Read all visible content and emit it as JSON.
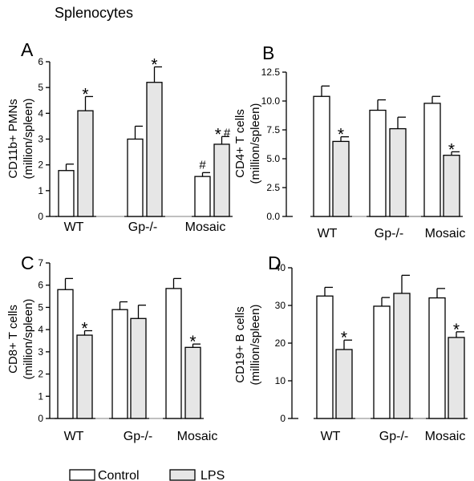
{
  "figure_title": "Splenocytes",
  "legend": [
    {
      "label": "Control",
      "color": "#ffffff"
    },
    {
      "label": "LPS",
      "color": "#e6e6e6"
    }
  ],
  "chart_data": [
    {
      "panel": "A",
      "type": "bar",
      "ylabel_lines": [
        "CD11b+ PMNs",
        "(million/spleen)"
      ],
      "categories": [
        "WT",
        "Gp-/-",
        "Mosaic"
      ],
      "ylim": [
        0,
        6
      ],
      "yticks": [
        "0",
        "1",
        "2",
        "3",
        "4",
        "5",
        "6"
      ],
      "series": [
        {
          "name": "Control",
          "values": [
            1.78,
            3.0,
            1.55
          ],
          "errors": [
            0.25,
            0.5,
            0.15
          ]
        },
        {
          "name": "LPS",
          "values": [
            4.1,
            5.2,
            2.8
          ],
          "errors": [
            0.55,
            0.6,
            0.3
          ]
        }
      ],
      "annotations": [
        {
          "series": "LPS",
          "category": "WT",
          "text": "*"
        },
        {
          "series": "LPS",
          "category": "Gp-/-",
          "text": "*"
        },
        {
          "series": "Control",
          "category": "Mosaic",
          "text": "#"
        },
        {
          "series": "LPS",
          "category": "Mosaic",
          "text": "* #"
        }
      ]
    },
    {
      "panel": "B",
      "type": "bar",
      "ylabel_lines": [
        "CD4+ T cells",
        "(million/spleen)"
      ],
      "categories": [
        "WT",
        "Gp-/-",
        "Mosaic"
      ],
      "ylim": [
        0,
        12.5
      ],
      "yticks": [
        "0.0",
        "2.5",
        "5.0",
        "7.5",
        "10.0",
        "12.5"
      ],
      "series": [
        {
          "name": "Control",
          "values": [
            10.4,
            9.2,
            9.8
          ],
          "errors": [
            0.9,
            0.9,
            0.6
          ]
        },
        {
          "name": "LPS",
          "values": [
            6.5,
            7.6,
            5.3
          ],
          "errors": [
            0.4,
            1.0,
            0.3
          ]
        }
      ],
      "annotations": [
        {
          "series": "LPS",
          "category": "WT",
          "text": "*"
        },
        {
          "series": "LPS",
          "category": "Mosaic",
          "text": "*"
        }
      ]
    },
    {
      "panel": "C",
      "type": "bar",
      "ylabel_lines": [
        "CD8+ T cells",
        "(million/spleen)"
      ],
      "categories": [
        "WT",
        "Gp-/-",
        "Mosaic"
      ],
      "ylim": [
        0,
        7
      ],
      "yticks": [
        "0",
        "1",
        "2",
        "3",
        "4",
        "5",
        "6",
        "7"
      ],
      "series": [
        {
          "name": "Control",
          "values": [
            5.8,
            4.9,
            5.85
          ],
          "errors": [
            0.5,
            0.35,
            0.45
          ]
        },
        {
          "name": "LPS",
          "values": [
            3.75,
            4.5,
            3.2
          ],
          "errors": [
            0.2,
            0.6,
            0.15
          ]
        }
      ],
      "annotations": [
        {
          "series": "LPS",
          "category": "WT",
          "text": "*"
        },
        {
          "series": "LPS",
          "category": "Mosaic",
          "text": "*"
        }
      ]
    },
    {
      "panel": "D",
      "type": "bar",
      "ylabel_lines": [
        "CD19+ B cells",
        "(million/spleen)"
      ],
      "categories": [
        "WT",
        "Gp-/-",
        "Mosaic"
      ],
      "ylim": [
        0,
        40
      ],
      "yticks": [
        "0",
        "10",
        "20",
        "30",
        "40"
      ],
      "series": [
        {
          "name": "Control",
          "values": [
            32.5,
            29.8,
            32.0
          ],
          "errors": [
            2.3,
            2.3,
            2.5
          ]
        },
        {
          "name": "LPS",
          "values": [
            18.3,
            33.2,
            21.5
          ],
          "errors": [
            2.5,
            4.8,
            1.5
          ]
        }
      ],
      "annotations": [
        {
          "series": "LPS",
          "category": "WT",
          "text": "*"
        },
        {
          "series": "LPS",
          "category": "Mosaic",
          "text": "*"
        }
      ]
    }
  ]
}
